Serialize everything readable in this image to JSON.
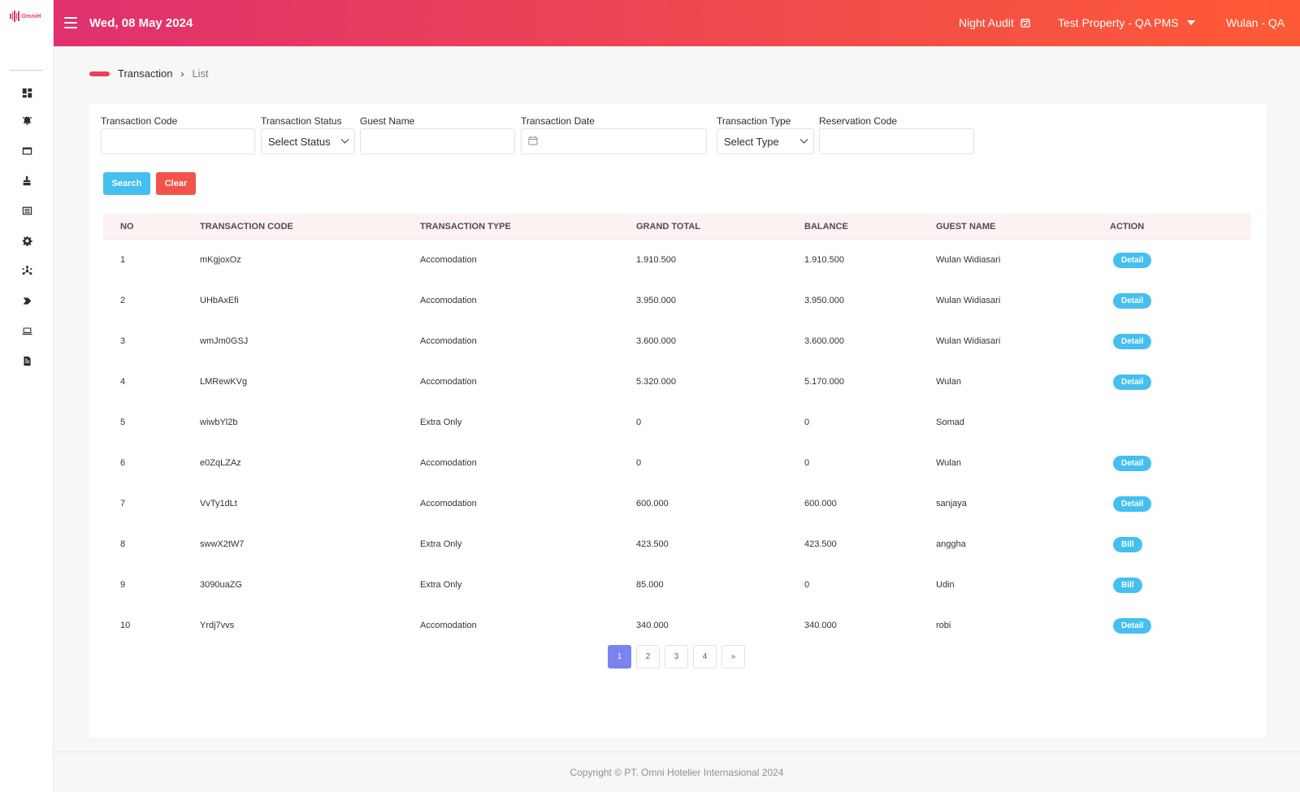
{
  "app": {
    "logo_text": "OmniH"
  },
  "header": {
    "date": "Wed, 08 May 2024",
    "night_audit": "Night Audit",
    "property": "Test Property - QA PMS",
    "user": "Wulan - QA"
  },
  "sidebar": {
    "icons": [
      "dashboard-icon",
      "alarm-bell-icon",
      "folder-icon",
      "housekeeping-icon",
      "report-list-icon",
      "gear-icon",
      "network-icon",
      "tag-icon",
      "laptop-icon",
      "document-icon"
    ]
  },
  "breadcrumb": {
    "main": "Transaction",
    "separator": "›",
    "sub": "List"
  },
  "filters": {
    "transaction_code": {
      "label": "Transaction Code",
      "value": ""
    },
    "transaction_status": {
      "label": "Transaction Status",
      "value": "Select Status"
    },
    "guest_name": {
      "label": "Guest Name",
      "value": ""
    },
    "transaction_date": {
      "label": "Transaction Date",
      "value": ""
    },
    "transaction_type": {
      "label": "Transaction Type",
      "value": "Select Type"
    },
    "reservation_code": {
      "label": "Reservation Code",
      "value": ""
    }
  },
  "buttons": {
    "search": "Search",
    "clear": "Clear"
  },
  "table": {
    "headers": {
      "no": "NO",
      "code": "TRANSACTION CODE",
      "type": "TRANSACTION TYPE",
      "grand_total": "GRAND TOTAL",
      "balance": "BALANCE",
      "guest": "GUEST NAME",
      "action": "ACTION"
    },
    "rows": [
      {
        "no": "1",
        "code": "mKgjoxOz",
        "type": "Accomodation",
        "grand_total": "1.910.500",
        "balance": "1.910.500",
        "guest": "Wulan Widiasari",
        "action": "Detail"
      },
      {
        "no": "2",
        "code": "UHbAxEfi",
        "type": "Accomodation",
        "grand_total": "3.950.000",
        "balance": "3.950.000",
        "guest": "Wulan Widiasari",
        "action": "Detail"
      },
      {
        "no": "3",
        "code": "wmJm0GSJ",
        "type": "Accomodation",
        "grand_total": "3.600.000",
        "balance": "3.600.000",
        "guest": "Wulan Widiasari",
        "action": "Detail"
      },
      {
        "no": "4",
        "code": "LMRewKVg",
        "type": "Accomodation",
        "grand_total": "5.320.000",
        "balance": "5.170.000",
        "guest": "Wulan",
        "action": "Detail"
      },
      {
        "no": "5",
        "code": "wiwbYl2b",
        "type": "Extra Only",
        "grand_total": "0",
        "balance": "0",
        "guest": "Somad",
        "action": ""
      },
      {
        "no": "6",
        "code": "e0ZqLZAz",
        "type": "Accomodation",
        "grand_total": "0",
        "balance": "0",
        "guest": "Wulan",
        "action": "Detail"
      },
      {
        "no": "7",
        "code": "VvTy1dLt",
        "type": "Accomodation",
        "grand_total": "600.000",
        "balance": "600.000",
        "guest": "sanjaya",
        "action": "Detail"
      },
      {
        "no": "8",
        "code": "swwX2tW7",
        "type": "Extra Only",
        "grand_total": "423.500",
        "balance": "423.500",
        "guest": "anggha",
        "action": "Bill"
      },
      {
        "no": "9",
        "code": "3090uaZG",
        "type": "Extra Only",
        "grand_total": "85.000",
        "balance": "0",
        "guest": "Udin",
        "action": "Bill"
      },
      {
        "no": "10",
        "code": "Yrdj7vvs",
        "type": "Accomodation",
        "grand_total": "340.000",
        "balance": "340.000",
        "guest": "robi",
        "action": "Detail"
      }
    ]
  },
  "pagination": {
    "pages": [
      "1",
      "2",
      "3",
      "4"
    ],
    "next": "»",
    "current": "1"
  },
  "footer": {
    "copyright": "Copyright © PT. Omni Hotelier Internasional 2024"
  },
  "colors": {
    "header_start": "#e0306f",
    "header_end": "#ff5a36",
    "action_blue": "#45bff0",
    "clear_red": "#f2534b",
    "page_active": "#7b83f0"
  }
}
